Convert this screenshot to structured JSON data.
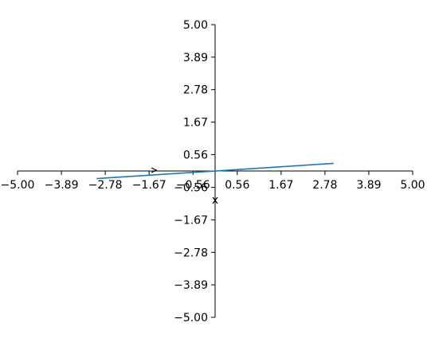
{
  "chart_data": {
    "type": "line",
    "xlabel": "x",
    "ylabel": "",
    "xlim": [
      -5.0,
      5.0
    ],
    "ylim": [
      -5.0,
      5.0
    ],
    "x_ticks": [
      "−5.00",
      "−3.89",
      "−2.78",
      "−1.67",
      "−0.56",
      "0.56",
      "1.67",
      "2.78",
      "3.89",
      "5.00"
    ],
    "y_ticks": [
      "5.00",
      "3.89",
      "2.78",
      "1.67",
      "0.56",
      "−0.56",
      "−1.67",
      "−2.78",
      "−3.89",
      "−5.00"
    ],
    "grid": false,
    "spines": "centered",
    "series": [
      {
        "color": "#1f77b4",
        "x": [
          -3.0,
          3.0
        ],
        "y": [
          -0.26,
          0.26
        ]
      }
    ]
  }
}
